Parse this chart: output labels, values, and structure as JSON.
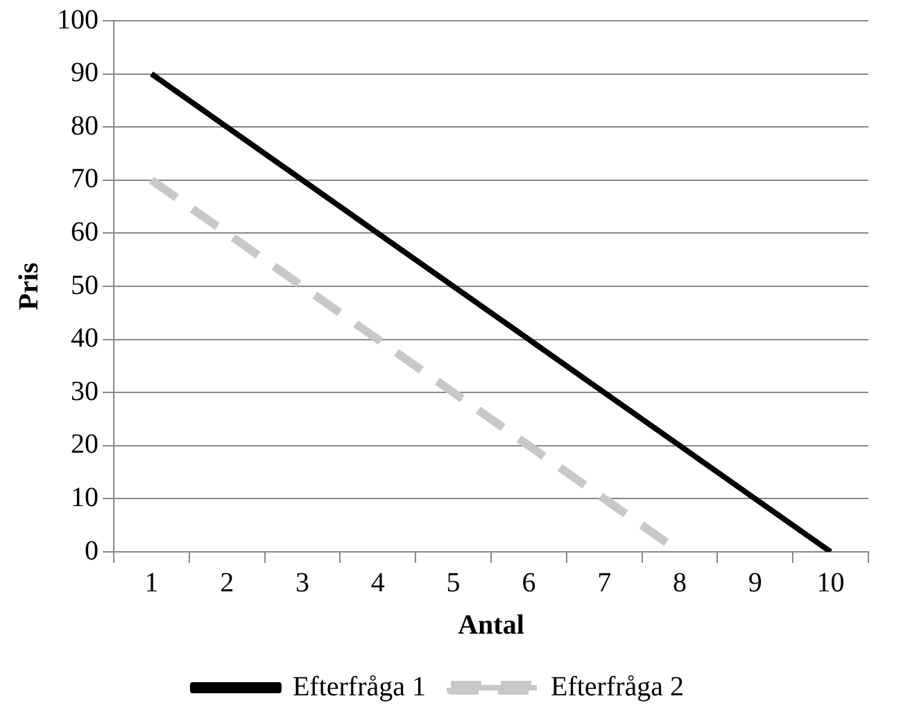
{
  "chart_data": {
    "type": "line",
    "xlabel": "Antal",
    "ylabel": "Pris",
    "categories": [
      "1",
      "2",
      "3",
      "4",
      "5",
      "6",
      "7",
      "8",
      "9",
      "10"
    ],
    "series": [
      {
        "name": "Efterfråga 1",
        "color": "#000000",
        "values": [
          90,
          80,
          70,
          60,
          50,
          40,
          30,
          20,
          10,
          0
        ],
        "line_style": "solid"
      },
      {
        "name": "Efterfråga 2",
        "color": "#c8c8c8",
        "values": [
          70,
          60,
          50,
          40,
          30,
          20,
          10,
          0,
          null,
          null
        ],
        "line_style": "dashed"
      }
    ],
    "ylim": [
      0,
      100
    ],
    "yticks": [
      0,
      10,
      20,
      30,
      40,
      50,
      60,
      70,
      80,
      90,
      100
    ],
    "grid": "y",
    "legend": "bottom",
    "marker": "none"
  }
}
